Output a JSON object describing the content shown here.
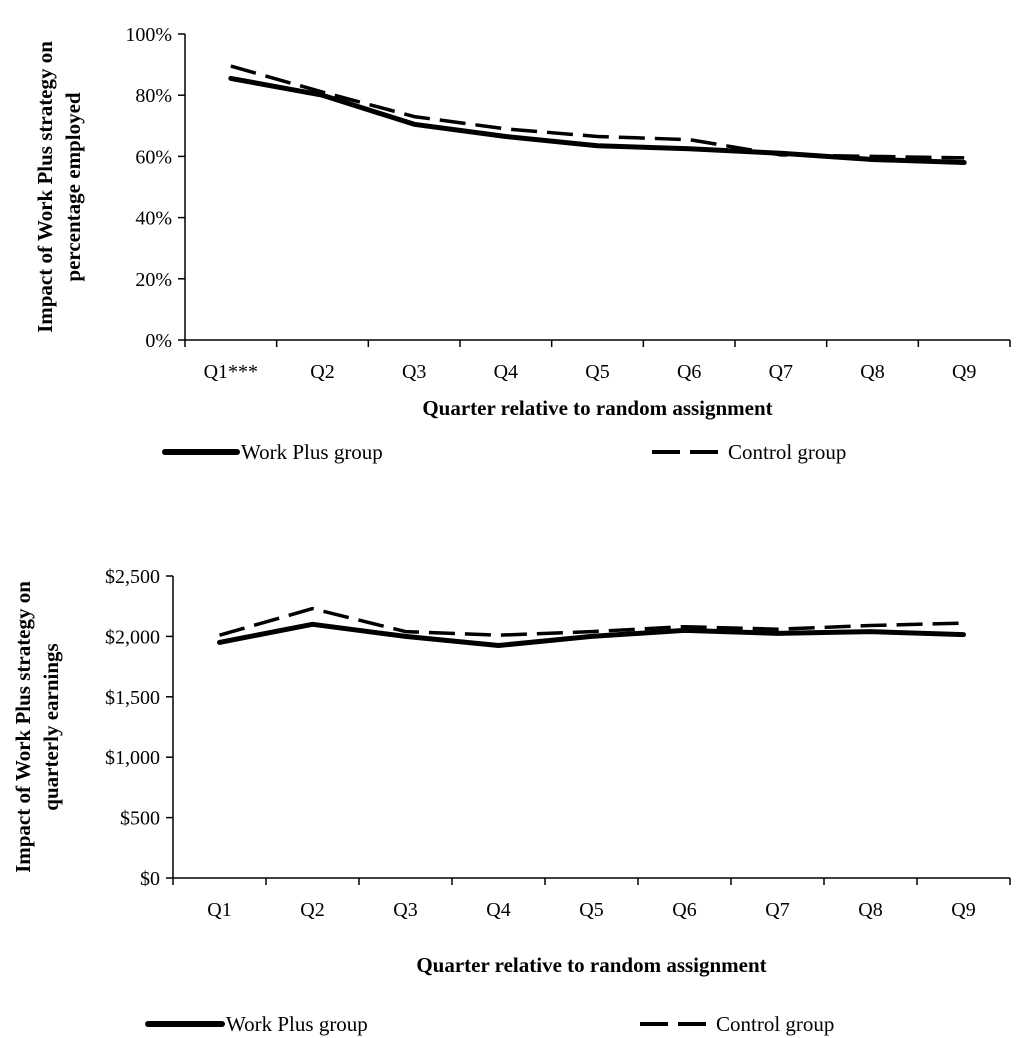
{
  "chart_data": [
    {
      "type": "line",
      "categories": [
        "Q1***",
        "Q2",
        "Q3",
        "Q4",
        "Q5",
        "Q6",
        "Q7",
        "Q8",
        "Q9"
      ],
      "series": [
        {
          "name": "Work Plus group",
          "values": [
            85.5,
            80,
            70.5,
            66.5,
            63.5,
            62.5,
            61,
            59,
            58
          ],
          "style": "solid",
          "color": "#000000"
        },
        {
          "name": "Control group",
          "values": [
            89.5,
            81,
            73,
            69,
            66.5,
            65.5,
            60.5,
            60,
            59.5
          ],
          "style": "dashed",
          "color": "#000000"
        }
      ],
      "ylim": [
        0,
        100
      ],
      "yticks": [
        0,
        20,
        40,
        60,
        80,
        100
      ],
      "ytick_labels": [
        "0%",
        "20%",
        "40%",
        "60%",
        "80%",
        "100%"
      ],
      "xlabel": "Quarter relative to random assignment",
      "ylabel_lines": [
        "Impact of Work Plus strategy on",
        "percentage employed"
      ],
      "legend": [
        "Work Plus group",
        "Control group"
      ],
      "grid": false,
      "legend_position": "bottom"
    },
    {
      "type": "line",
      "categories": [
        "Q1",
        "Q2",
        "Q3",
        "Q4",
        "Q5",
        "Q6",
        "Q7",
        "Q8",
        "Q9"
      ],
      "series": [
        {
          "name": "Work Plus group",
          "values": [
            1950,
            2100,
            2000,
            1925,
            2000,
            2050,
            2025,
            2040,
            2015
          ],
          "style": "solid",
          "color": "#000000"
        },
        {
          "name": "Control group",
          "values": [
            2010,
            2230,
            2040,
            2010,
            2040,
            2080,
            2060,
            2090,
            2110
          ],
          "style": "dashed",
          "color": "#000000"
        }
      ],
      "ylim": [
        0,
        2500
      ],
      "yticks": [
        0,
        500,
        1000,
        1500,
        2000,
        2500
      ],
      "ytick_labels": [
        "$0",
        "$500",
        "$1,000",
        "$1,500",
        "$2,000",
        "$2,500"
      ],
      "xlabel": "Quarter relative to random assignment",
      "ylabel_lines": [
        "Impact of Work Plus strategy on",
        "quarterly earnings"
      ],
      "legend": [
        "Work Plus group",
        "Control group"
      ],
      "grid": false,
      "legend_position": "bottom"
    }
  ]
}
